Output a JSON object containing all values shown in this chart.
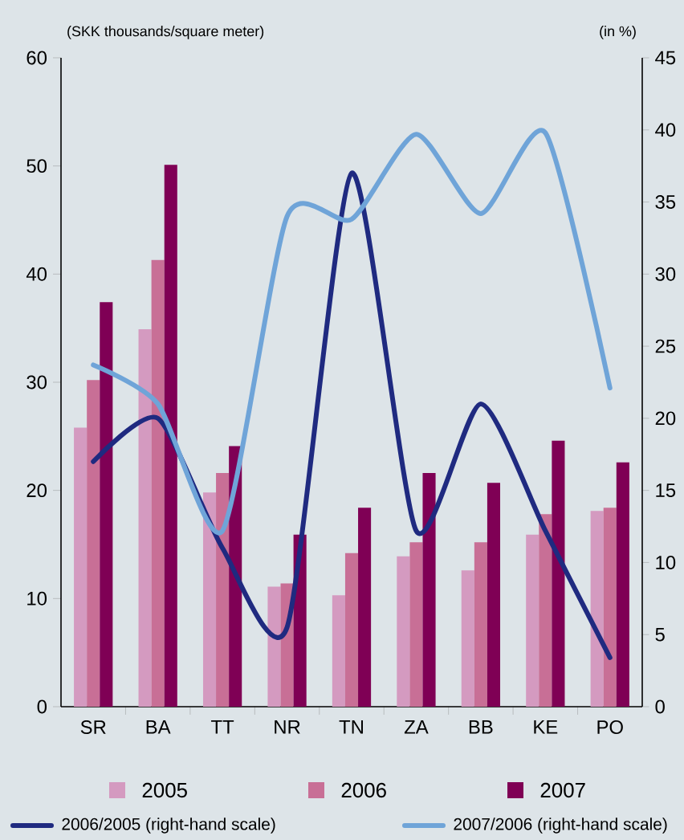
{
  "chart_data": {
    "type": "bar",
    "ylabel": "(SKK thousands/square meter)",
    "y2label": "(in %)",
    "categories": [
      "SR",
      "BA",
      "TT",
      "NR",
      "TN",
      "ZA",
      "BB",
      "KE",
      "PO"
    ],
    "series": [
      {
        "name": "2005",
        "color": "#d49ac0",
        "values": [
          25.8,
          34.9,
          19.8,
          11.1,
          10.3,
          13.9,
          12.6,
          15.9,
          18.1
        ]
      },
      {
        "name": "2006",
        "color": "#c86f96",
        "values": [
          30.2,
          41.3,
          21.6,
          11.4,
          14.2,
          15.2,
          15.2,
          17.8,
          18.4
        ]
      },
      {
        "name": "2007",
        "color": "#7f0055",
        "values": [
          37.4,
          50.1,
          24.1,
          15.9,
          18.4,
          21.6,
          20.7,
          24.6,
          22.6
        ]
      },
      {
        "name": "2006/2005 (right-hand scale)",
        "type": "line",
        "axis": "y2",
        "color": "#1f2a80",
        "values": [
          17,
          20,
          11,
          5.5,
          37,
          12.2,
          21,
          12.2,
          3.4
        ]
      },
      {
        "name": "2007/2006 (right-hand scale)",
        "type": "line",
        "axis": "y2",
        "color": "#6fa4d8",
        "values": [
          23.7,
          21,
          12.2,
          34,
          33.8,
          39.7,
          34.2,
          39.8,
          22.1
        ]
      }
    ],
    "ylim": [
      0,
      60
    ],
    "yticks": [
      0,
      10,
      20,
      30,
      40,
      50,
      60
    ],
    "y2lim": [
      0,
      45
    ],
    "y2ticks": [
      0,
      5,
      10,
      15,
      20,
      25,
      30,
      35,
      40,
      45
    ],
    "legend": "bottom",
    "line_style": "solid",
    "marker": "none"
  }
}
